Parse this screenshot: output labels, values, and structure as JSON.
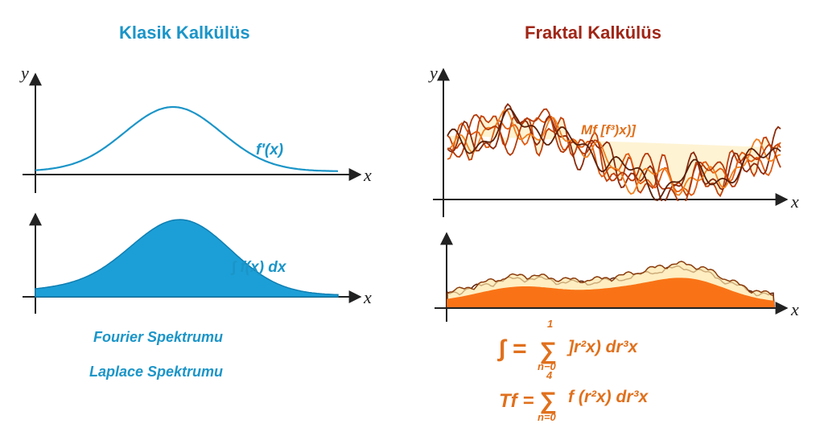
{
  "left": {
    "title": "Klasik Kalkülüs",
    "y_axis_label": "y",
    "x_axis_label": "x",
    "top_curve_label": "f′(x)",
    "bottom_curve_label": "∫ f(x) dx",
    "spectra": [
      "Fourier Spektrumu",
      "Laplace Spektrumu"
    ],
    "colors": {
      "accent": "#1b95c8",
      "fill": "#1c9fd6"
    }
  },
  "right": {
    "title": "Fraktal Kalkülüs",
    "y_axis_label": "y",
    "x_axis_label": "x",
    "top_curve_label": "Mf [f³)x)]",
    "formula_1": {
      "lhs": "∫ =",
      "sum_top": "1",
      "sum_bottom": "n−0",
      "rhs": "]r²x) dr³x"
    },
    "formula_2": {
      "lhs": "Tf =",
      "sum_top": "4",
      "sum_bottom": "n=0",
      "rhs": "f (r²x) dr³x"
    },
    "colors": {
      "accent": "#a02617",
      "stroke": "#c2410c",
      "fill": "#f97316",
      "light_fill": "#fde7a8"
    }
  }
}
